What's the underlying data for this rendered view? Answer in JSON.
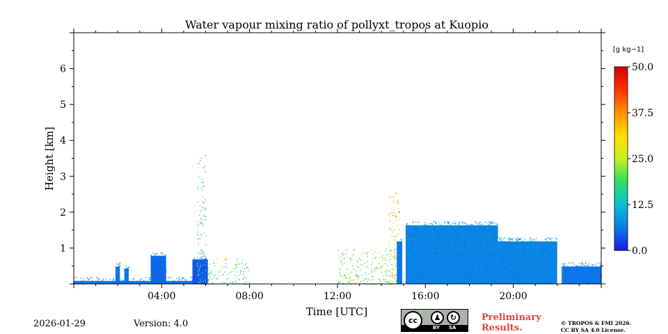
{
  "chart_data": {
    "type": "heatmap",
    "title": "Water vapour mixing ratio of pollyxt_tropos at Kuopio",
    "xlabel": "Time [UTC]",
    "ylabel": "Height [km]",
    "xlim": [
      0,
      24
    ],
    "ylim": [
      0,
      7
    ],
    "x_tick_labels": [
      "04:00",
      "08:00",
      "12:00",
      "16:00",
      "20:00"
    ],
    "x_tick_values": [
      4,
      8,
      12,
      16,
      20
    ],
    "y_tick_labels": [
      "1",
      "2",
      "3",
      "4",
      "5",
      "6"
    ],
    "y_tick_values": [
      1,
      2,
      3,
      4,
      5,
      6
    ],
    "colorbar": {
      "label": "[g kg−1]",
      "min": 0,
      "max": 50,
      "tick_labels": [
        "50.0",
        "37.5",
        "25.0",
        "12.5",
        "0.0"
      ],
      "tick_values": [
        50,
        37.5,
        25,
        12.5,
        0
      ],
      "colormap": [
        "#1a1ae8",
        "#0a78e8",
        "#08c0d8",
        "#30e060",
        "#c8f020",
        "#ffe000",
        "#ff9000",
        "#ff3000",
        "#d00000"
      ]
    },
    "data_regions": [
      {
        "t_start": 0.0,
        "t_end": 5.4,
        "h_top": 0.2,
        "value": 6,
        "note": "thin surface layer"
      },
      {
        "t_start": 1.9,
        "t_end": 2.1,
        "h_top": 0.6,
        "value": 6
      },
      {
        "t_start": 2.3,
        "t_end": 2.5,
        "h_top": 0.55,
        "value": 6
      },
      {
        "t_start": 3.5,
        "t_end": 4.2,
        "h_top": 0.9,
        "value": 5,
        "note": "moist column"
      },
      {
        "t_start": 5.4,
        "t_end": 6.1,
        "h_top": 0.8,
        "value": 4,
        "note": "dense column"
      },
      {
        "t_start": 5.6,
        "t_end": 6.0,
        "h_top": 3.6,
        "value": 14,
        "note": "scattered plume"
      },
      {
        "t_start": 6.1,
        "t_end": 8.0,
        "h_top": 0.75,
        "value": 16,
        "note": "sparse residual"
      },
      {
        "t_start": 12.0,
        "t_end": 14.7,
        "h_top": 1.0,
        "value": 18,
        "note": "sparse developing layer"
      },
      {
        "t_start": 14.3,
        "t_end": 14.8,
        "h_top": 2.6,
        "value": 26,
        "note": "scattered plume"
      },
      {
        "t_start": 14.7,
        "t_end": 14.95,
        "h_top": 1.3,
        "value": 6
      },
      {
        "t_start": 15.1,
        "t_end": 19.3,
        "h_top": 1.75,
        "value": 7,
        "note": "boundary layer"
      },
      {
        "t_start": 19.3,
        "t_end": 22.0,
        "h_top": 1.3,
        "value": 7,
        "note": "boundary layer"
      },
      {
        "t_start": 22.2,
        "t_end": 24.0,
        "h_top": 0.6,
        "value": 6,
        "note": "shallow layer"
      }
    ],
    "data_gaps": [
      {
        "t_start": 14.95,
        "t_end": 15.1
      },
      {
        "t_start": 22.0,
        "t_end": 22.2
      }
    ]
  },
  "footer": {
    "date": "2026-01-29",
    "version": "Version: 4.0",
    "license_badge": {
      "cc": "cc",
      "by": "BY",
      "sa": "SA"
    },
    "preliminary_line1": "Preliminary",
    "preliminary_line2": "Results.",
    "copyright_line1": "© TROPOS & FMI 2026.",
    "copyright_line2": "CC BY SA 4.0 License."
  }
}
